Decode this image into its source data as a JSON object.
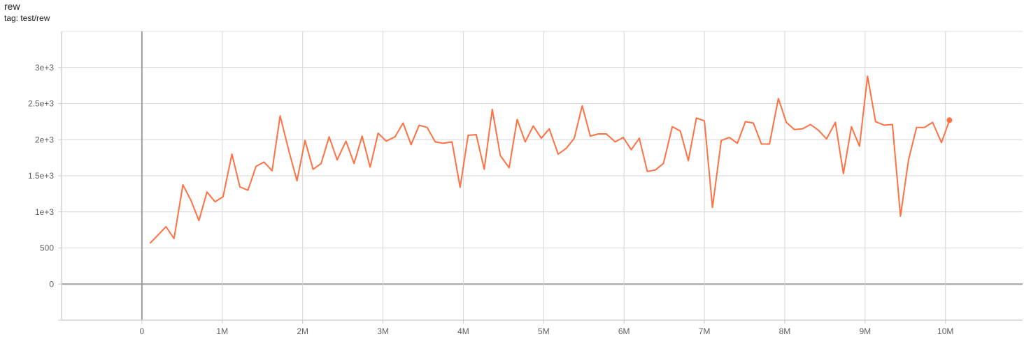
{
  "header": {
    "title": "rew",
    "tag": "tag: test/rew"
  },
  "chart_data": {
    "type": "line",
    "title": "rew",
    "subtitle": "tag: test/rew",
    "xlabel": "",
    "ylabel": "",
    "xlim": [
      -1000000,
      10960000
    ],
    "ylim": [
      -500,
      3500
    ],
    "grid": true,
    "legend": "none",
    "line_color": "#ff7043",
    "x_ticks": [
      {
        "value": 0,
        "label": "0"
      },
      {
        "value": 1000000,
        "label": "1M"
      },
      {
        "value": 2000000,
        "label": "2M"
      },
      {
        "value": 3000000,
        "label": "3M"
      },
      {
        "value": 4000000,
        "label": "4M"
      },
      {
        "value": 5000000,
        "label": "5M"
      },
      {
        "value": 6000000,
        "label": "6M"
      },
      {
        "value": 7000000,
        "label": "7M"
      },
      {
        "value": 8000000,
        "label": "8M"
      },
      {
        "value": 9000000,
        "label": "9M"
      },
      {
        "value": 10000000,
        "label": "10M"
      }
    ],
    "y_ticks": [
      {
        "value": 0,
        "label": "0"
      },
      {
        "value": 500,
        "label": "500"
      },
      {
        "value": 1000,
        "label": "1e+3"
      },
      {
        "value": 1500,
        "label": "1.5e+3"
      },
      {
        "value": 2000,
        "label": "2e+3"
      },
      {
        "value": 2500,
        "label": "2.5e+3"
      },
      {
        "value": 3000,
        "label": "3e+3"
      }
    ],
    "x_M": [
      0.1,
      0.2,
      0.3,
      0.4,
      0.51,
      0.61,
      0.71,
      0.81,
      0.91,
      1.01,
      1.12,
      1.22,
      1.32,
      1.42,
      1.52,
      1.62,
      1.72,
      1.83,
      1.93,
      2.03,
      2.13,
      2.23,
      2.33,
      2.43,
      2.54,
      2.64,
      2.74,
      2.84,
      2.94,
      3.04,
      3.15,
      3.25,
      3.35,
      3.45,
      3.55,
      3.65,
      3.75,
      3.86,
      3.96,
      4.06,
      4.16,
      4.26,
      4.36,
      4.46,
      4.57,
      4.67,
      4.77,
      4.87,
      4.97,
      5.07,
      5.18,
      5.28,
      5.38,
      5.48,
      5.58,
      5.68,
      5.78,
      5.89,
      5.99,
      6.09,
      6.19,
      6.29,
      6.39,
      6.49,
      6.6,
      6.7,
      6.8,
      6.9,
      7.0,
      7.1,
      7.21,
      7.31,
      7.41,
      7.51,
      7.61,
      7.71,
      7.81,
      7.92,
      8.02,
      8.12,
      8.22,
      8.32,
      8.42,
      8.52,
      8.63,
      8.73,
      8.83,
      8.93,
      9.03,
      9.13,
      9.24,
      9.34,
      9.44,
      9.54,
      9.64,
      9.74,
      9.84,
      9.95,
      10.05
    ],
    "values": [
      565,
      680,
      795,
      630,
      1375,
      1160,
      880,
      1275,
      1140,
      1210,
      1800,
      1345,
      1300,
      1630,
      1690,
      1570,
      2330,
      1840,
      1430,
      1990,
      1590,
      1670,
      2040,
      1720,
      1980,
      1670,
      2050,
      1620,
      2090,
      1980,
      2040,
      2230,
      1930,
      2200,
      2170,
      1970,
      1950,
      1970,
      1340,
      2060,
      2070,
      1590,
      2420,
      1780,
      1610,
      2280,
      1970,
      2190,
      2020,
      2150,
      1800,
      1880,
      2020,
      2470,
      2050,
      2080,
      2080,
      1970,
      2030,
      1860,
      2020,
      1560,
      1580,
      1670,
      2180,
      2120,
      1710,
      2300,
      2260,
      1060,
      1990,
      2030,
      1950,
      2250,
      2230,
      1940,
      1940,
      2570,
      2240,
      2140,
      2150,
      2210,
      2130,
      2010,
      2240,
      1530,
      2180,
      1910,
      2880,
      2250,
      2200,
      2210,
      940,
      1720,
      2170,
      2170,
      2240,
      1960,
      2270
    ]
  }
}
